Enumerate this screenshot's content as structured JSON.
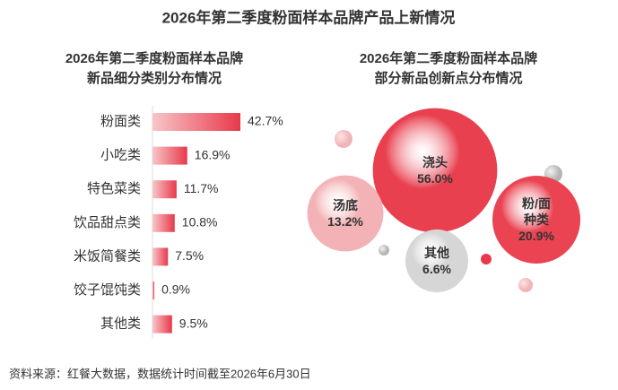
{
  "title": "2026年第二季度粉面样本品牌产品上新情况",
  "source": "资料来源：红餐大数据，数据统计时间截至2026年6月30日",
  "chart_data": [
    {
      "type": "hbar",
      "title": [
        "2026年第二季度粉面样本品牌",
        "新品细分类别分布情况"
      ],
      "categories": [
        "粉面类",
        "小吃类",
        "特色菜类",
        "饮品甜点类",
        "米饭简餐类",
        "饺子馄饨类",
        "其他类"
      ],
      "values": [
        42.7,
        16.9,
        11.7,
        10.8,
        7.5,
        0.9,
        9.5
      ],
      "value_labels": [
        "42.7%",
        "16.9%",
        "11.7%",
        "10.8%",
        "7.5%",
        "0.9%",
        "9.5%"
      ],
      "color": "#e8394a"
    },
    {
      "type": "bubble",
      "title": [
        "2026年第二季度粉面样本品牌",
        "部分新品创新点分布情况"
      ],
      "categories": [
        "浇头",
        "汤底",
        "粉/面\n种类",
        "其他"
      ],
      "values": [
        56.0,
        13.2,
        20.9,
        6.6
      ],
      "value_labels": [
        "56.0%",
        "13.2%",
        "20.9%",
        "6.6%"
      ],
      "colors": [
        "#e8404f",
        "#f3b3b6",
        "#ea4352",
        "#d6d6d6"
      ]
    }
  ]
}
